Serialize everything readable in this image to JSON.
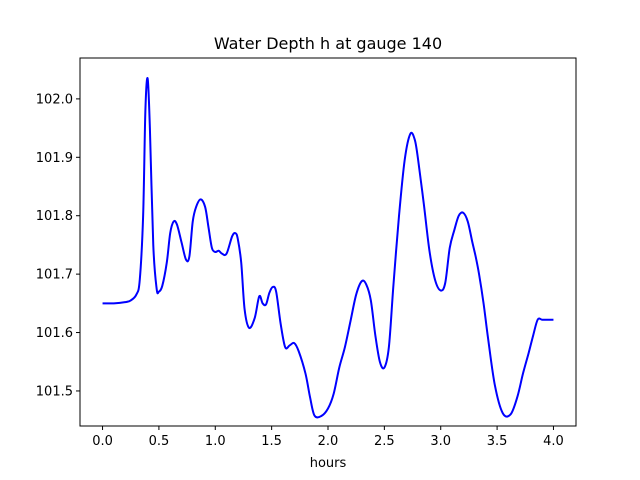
{
  "chart_data": {
    "type": "line",
    "title": "Water Depth h at gauge 140",
    "xlabel": "hours",
    "ylabel": "",
    "xlim": [
      -0.2,
      4.2
    ],
    "ylim": [
      101.44,
      102.07
    ],
    "xticks": [
      0.0,
      0.5,
      1.0,
      1.5,
      2.0,
      2.5,
      3.0,
      3.5,
      4.0
    ],
    "xtick_labels": [
      "0.0",
      "0.5",
      "1.0",
      "1.5",
      "2.0",
      "2.5",
      "3.0",
      "3.5",
      "4.0"
    ],
    "yticks": [
      101.5,
      101.6,
      101.7,
      101.8,
      101.9,
      102.0
    ],
    "ytick_labels": [
      "101.5",
      "101.6",
      "101.7",
      "101.8",
      "101.9",
      "102.0"
    ],
    "grid": false,
    "series": [
      {
        "color": "#0000ff",
        "x": [
          0.0,
          0.1,
          0.2,
          0.25,
          0.3,
          0.33,
          0.36,
          0.38,
          0.4,
          0.42,
          0.45,
          0.48,
          0.5,
          0.53,
          0.57,
          0.6,
          0.63,
          0.66,
          0.7,
          0.74,
          0.77,
          0.8,
          0.83,
          0.87,
          0.91,
          0.94,
          0.97,
          1.0,
          1.03,
          1.06,
          1.1,
          1.15,
          1.18,
          1.2,
          1.23,
          1.26,
          1.3,
          1.35,
          1.39,
          1.42,
          1.45,
          1.48,
          1.51,
          1.54,
          1.58,
          1.62,
          1.66,
          1.7,
          1.74,
          1.8,
          1.84,
          1.88,
          1.94,
          2.0,
          2.05,
          2.1,
          2.15,
          2.2,
          2.25,
          2.3,
          2.34,
          2.38,
          2.42,
          2.46,
          2.5,
          2.54,
          2.58,
          2.63,
          2.68,
          2.73,
          2.77,
          2.8,
          2.85,
          2.9,
          2.95,
          3.0,
          3.04,
          3.08,
          3.12,
          3.16,
          3.2,
          3.24,
          3.28,
          3.31,
          3.34,
          3.38,
          3.42,
          3.48,
          3.55,
          3.62,
          3.68,
          3.73,
          3.78,
          3.82,
          3.86,
          3.9,
          3.95,
          4.0
        ],
        "y": [
          101.65,
          101.65,
          101.652,
          101.655,
          101.665,
          101.69,
          101.8,
          101.98,
          102.035,
          101.95,
          101.75,
          101.675,
          101.67,
          101.68,
          101.72,
          101.77,
          101.79,
          101.785,
          101.755,
          101.725,
          101.73,
          101.79,
          101.815,
          101.828,
          101.815,
          101.78,
          101.745,
          101.738,
          101.74,
          101.735,
          101.735,
          101.765,
          101.77,
          101.76,
          101.72,
          101.64,
          101.608,
          101.625,
          101.662,
          101.65,
          101.648,
          101.668,
          101.678,
          101.67,
          101.615,
          101.575,
          101.578,
          101.582,
          101.568,
          101.53,
          101.49,
          101.458,
          101.457,
          101.47,
          101.495,
          101.54,
          101.575,
          101.62,
          101.665,
          101.688,
          101.682,
          101.655,
          101.595,
          101.55,
          101.54,
          101.575,
          101.68,
          101.8,
          101.895,
          101.94,
          101.93,
          101.895,
          101.82,
          101.74,
          101.69,
          101.672,
          101.685,
          101.745,
          101.775,
          101.8,
          101.805,
          101.79,
          101.755,
          101.73,
          101.7,
          101.65,
          101.59,
          101.51,
          101.462,
          101.46,
          101.49,
          101.53,
          101.565,
          101.595,
          101.622,
          101.622,
          101.622,
          101.622
        ]
      }
    ]
  }
}
